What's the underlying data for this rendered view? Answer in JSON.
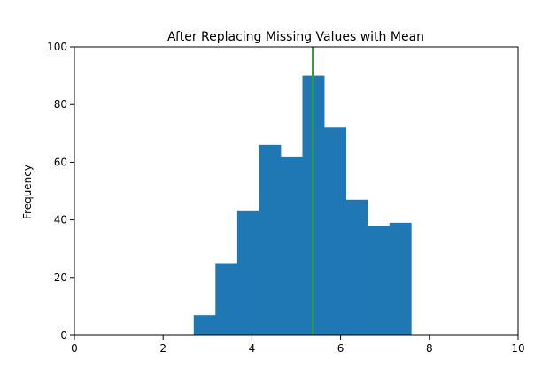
{
  "chart_data": {
    "type": "bar",
    "title": "After Replacing Missing Values with Mean",
    "xlabel": "",
    "ylabel": "Frequency",
    "xlim": [
      0,
      10
    ],
    "ylim": [
      0,
      100
    ],
    "xticks": [
      0,
      2,
      4,
      6,
      8,
      10
    ],
    "yticks": [
      0,
      20,
      40,
      60,
      80,
      100
    ],
    "grid": false,
    "bins": [
      {
        "x0": 2.69,
        "x1": 3.18,
        "value": 7
      },
      {
        "x0": 3.18,
        "x1": 3.67,
        "value": 25
      },
      {
        "x0": 3.67,
        "x1": 4.16,
        "value": 43
      },
      {
        "x0": 4.16,
        "x1": 4.65,
        "value": 66
      },
      {
        "x0": 4.65,
        "x1": 5.14,
        "value": 62
      },
      {
        "x0": 5.14,
        "x1": 5.63,
        "value": 90
      },
      {
        "x0": 5.63,
        "x1": 6.12,
        "value": 72
      },
      {
        "x0": 6.12,
        "x1": 6.61,
        "value": 47
      },
      {
        "x0": 6.61,
        "x1": 7.1,
        "value": 38
      },
      {
        "x0": 7.1,
        "x1": 7.59,
        "value": 39
      }
    ],
    "vline": {
      "x": 5.37,
      "color": "#2ca02c"
    },
    "colors": {
      "bar": "#1f77b4",
      "axis": "#000000"
    }
  }
}
